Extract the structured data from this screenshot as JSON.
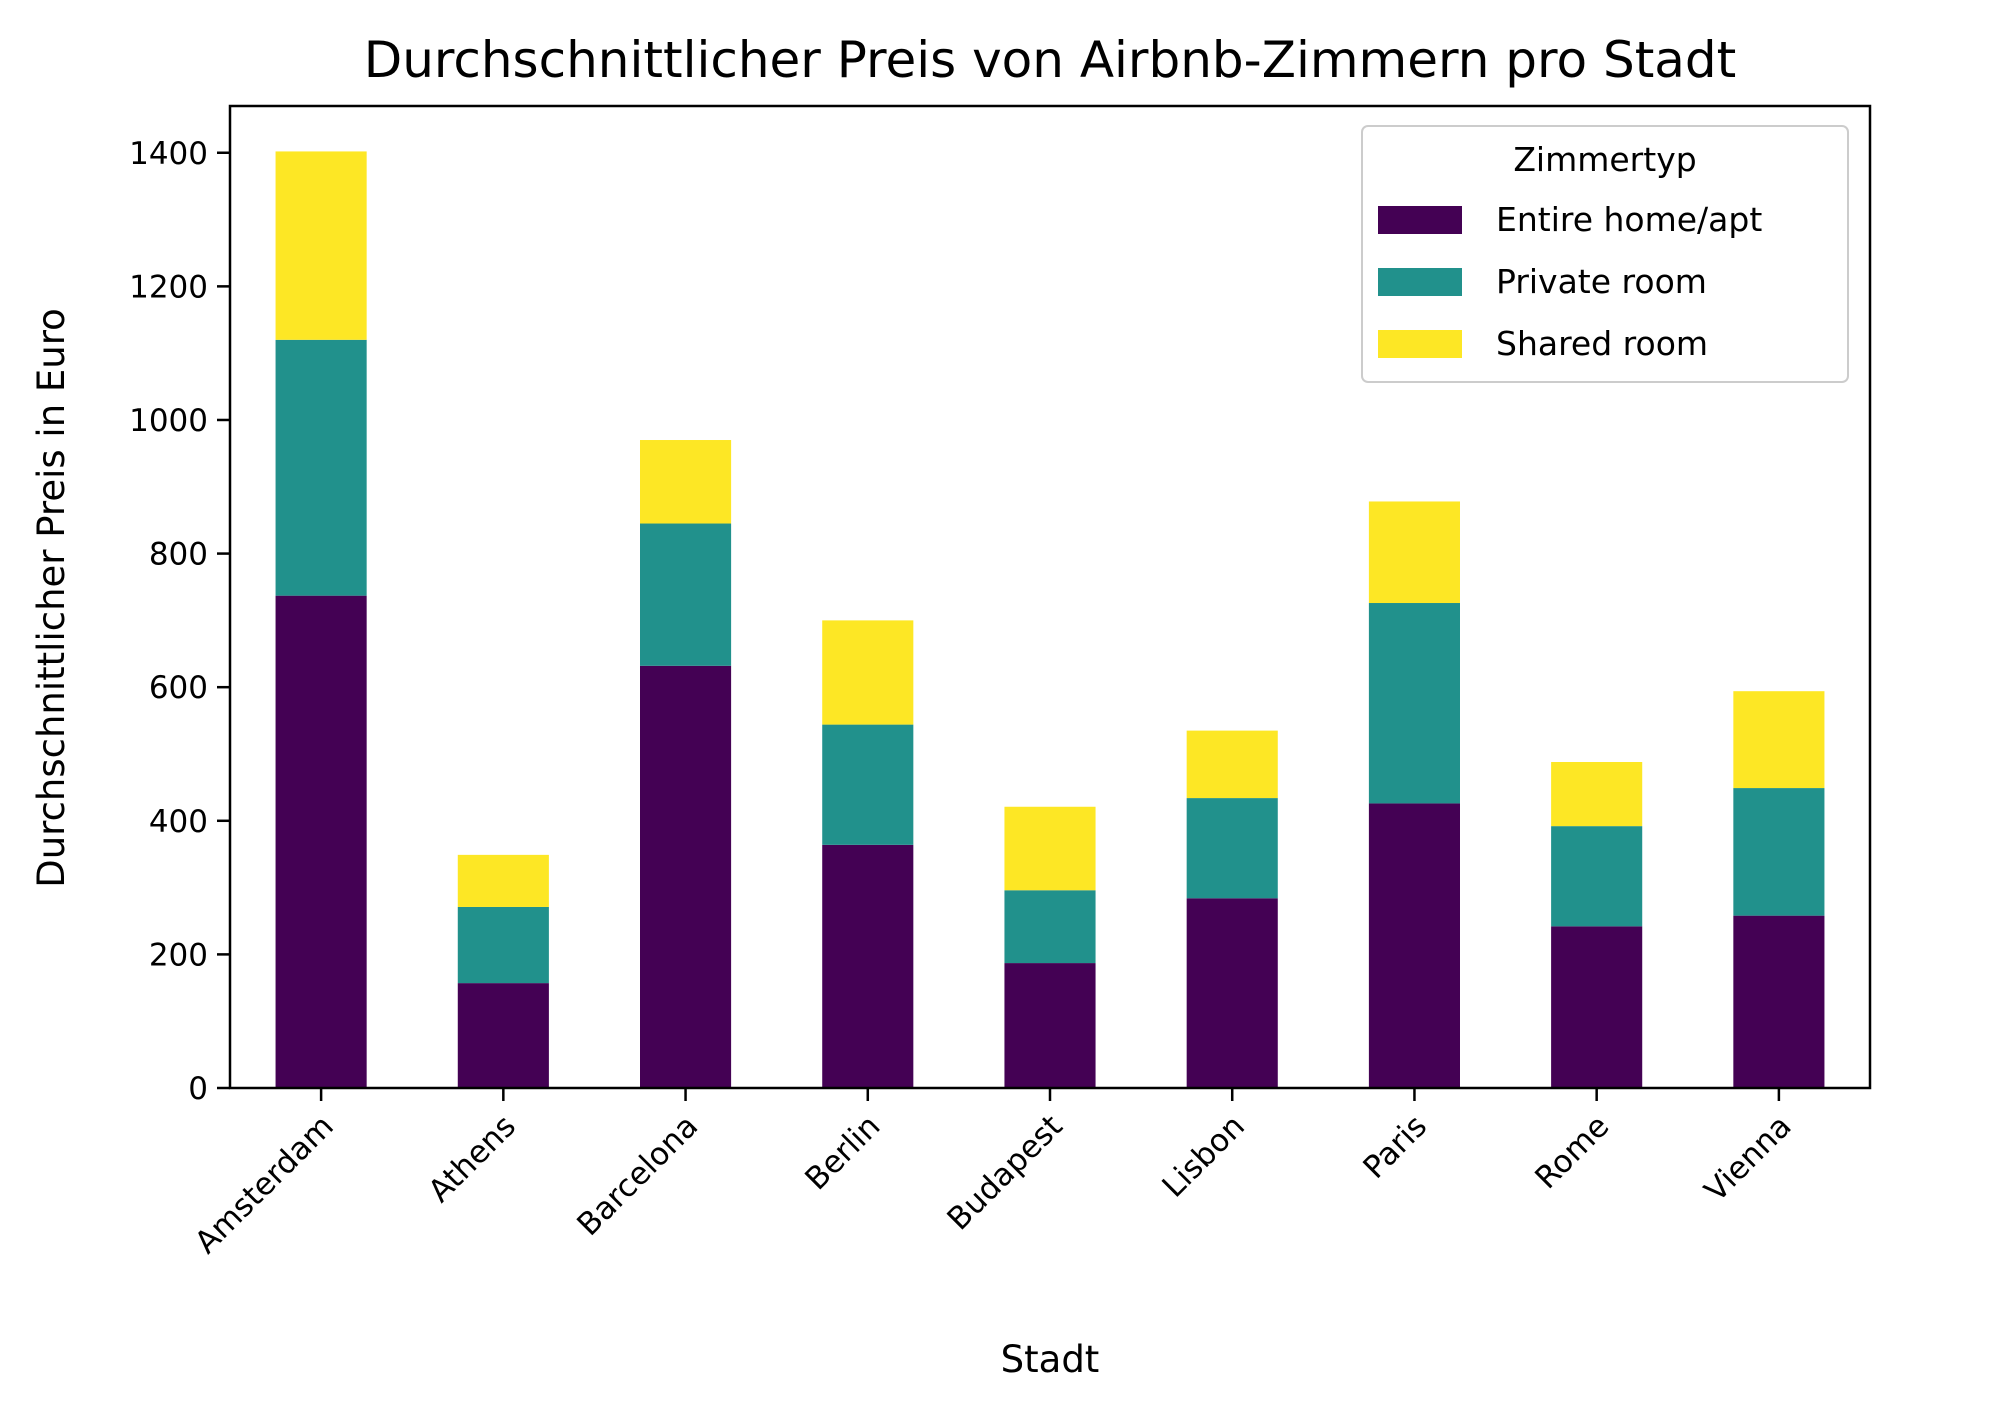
{
  "chart_data": {
    "type": "bar",
    "stacked": true,
    "title": "Durchschnittlicher Preis von Airbnb-Zimmern pro Stadt",
    "xlabel": "Stadt",
    "ylabel": "Durchschnittlicher Preis in Euro",
    "ylim": [
      0,
      1470
    ],
    "yticks": [
      0,
      200,
      400,
      600,
      800,
      1000,
      1200,
      1400
    ],
    "categories": [
      "Amsterdam",
      "Athens",
      "Barcelona",
      "Berlin",
      "Budapest",
      "Lisbon",
      "Paris",
      "Rome",
      "Vienna"
    ],
    "series": [
      {
        "name": "Entire home/apt",
        "color": "#440154",
        "values": [
          737,
          157,
          632,
          364,
          187,
          284,
          426,
          242,
          258
        ]
      },
      {
        "name": "Private room",
        "color": "#21918c",
        "values": [
          383,
          114,
          213,
          180,
          109,
          150,
          300,
          150,
          191
        ]
      },
      {
        "name": "Shared room",
        "color": "#fde725",
        "values": [
          282,
          78,
          125,
          156,
          125,
          101,
          152,
          96,
          145
        ]
      }
    ],
    "legend": {
      "title": "Zimmertyp",
      "position": "top-right"
    },
    "grid": false
  }
}
